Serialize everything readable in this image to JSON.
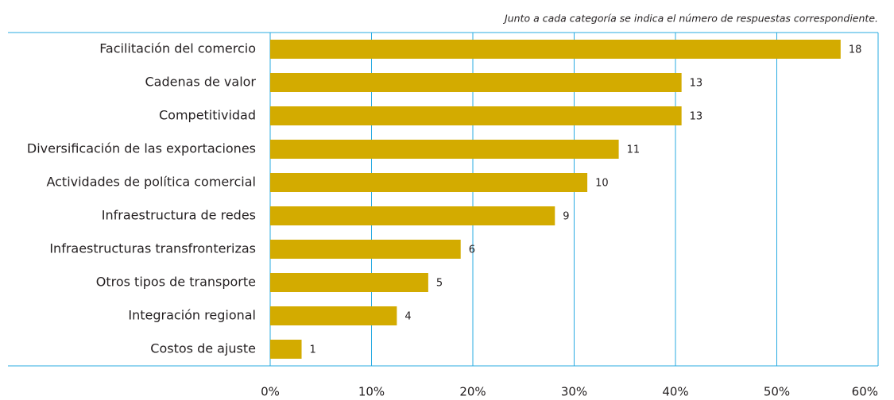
{
  "chart_data": {
    "type": "barh",
    "note": "Junto a cada categoría se indica el número de respuestas correspondiente.",
    "categories": [
      "Facilitación del comercio",
      "Cadenas de valor",
      "Competitividad",
      "Diversificación de las exportaciones",
      "Actividades de política comercial",
      "Infraestructura de redes",
      "Infraestructuras transfronterizas",
      "Otros tipos de transporte",
      "Integración regional",
      "Costos de ajuste"
    ],
    "values": [
      56.3,
      40.6,
      40.6,
      34.4,
      31.3,
      28.1,
      18.8,
      15.6,
      12.5,
      3.1
    ],
    "responses": [
      18,
      13,
      13,
      11,
      10,
      9,
      6,
      5,
      4,
      1
    ],
    "color": "#d3ab00",
    "grid_color": "#29abe2",
    "xlim": [
      0,
      60
    ],
    "xticks": [
      {
        "value": 0,
        "label": "0%"
      },
      {
        "value": 10,
        "label": "10%"
      },
      {
        "value": 20,
        "label": "20%"
      },
      {
        "value": 30,
        "label": "30%"
      },
      {
        "value": 40,
        "label": "40%"
      },
      {
        "value": 50,
        "label": "50%"
      },
      {
        "value": 60,
        "label": "60%"
      }
    ],
    "grid": true
  }
}
